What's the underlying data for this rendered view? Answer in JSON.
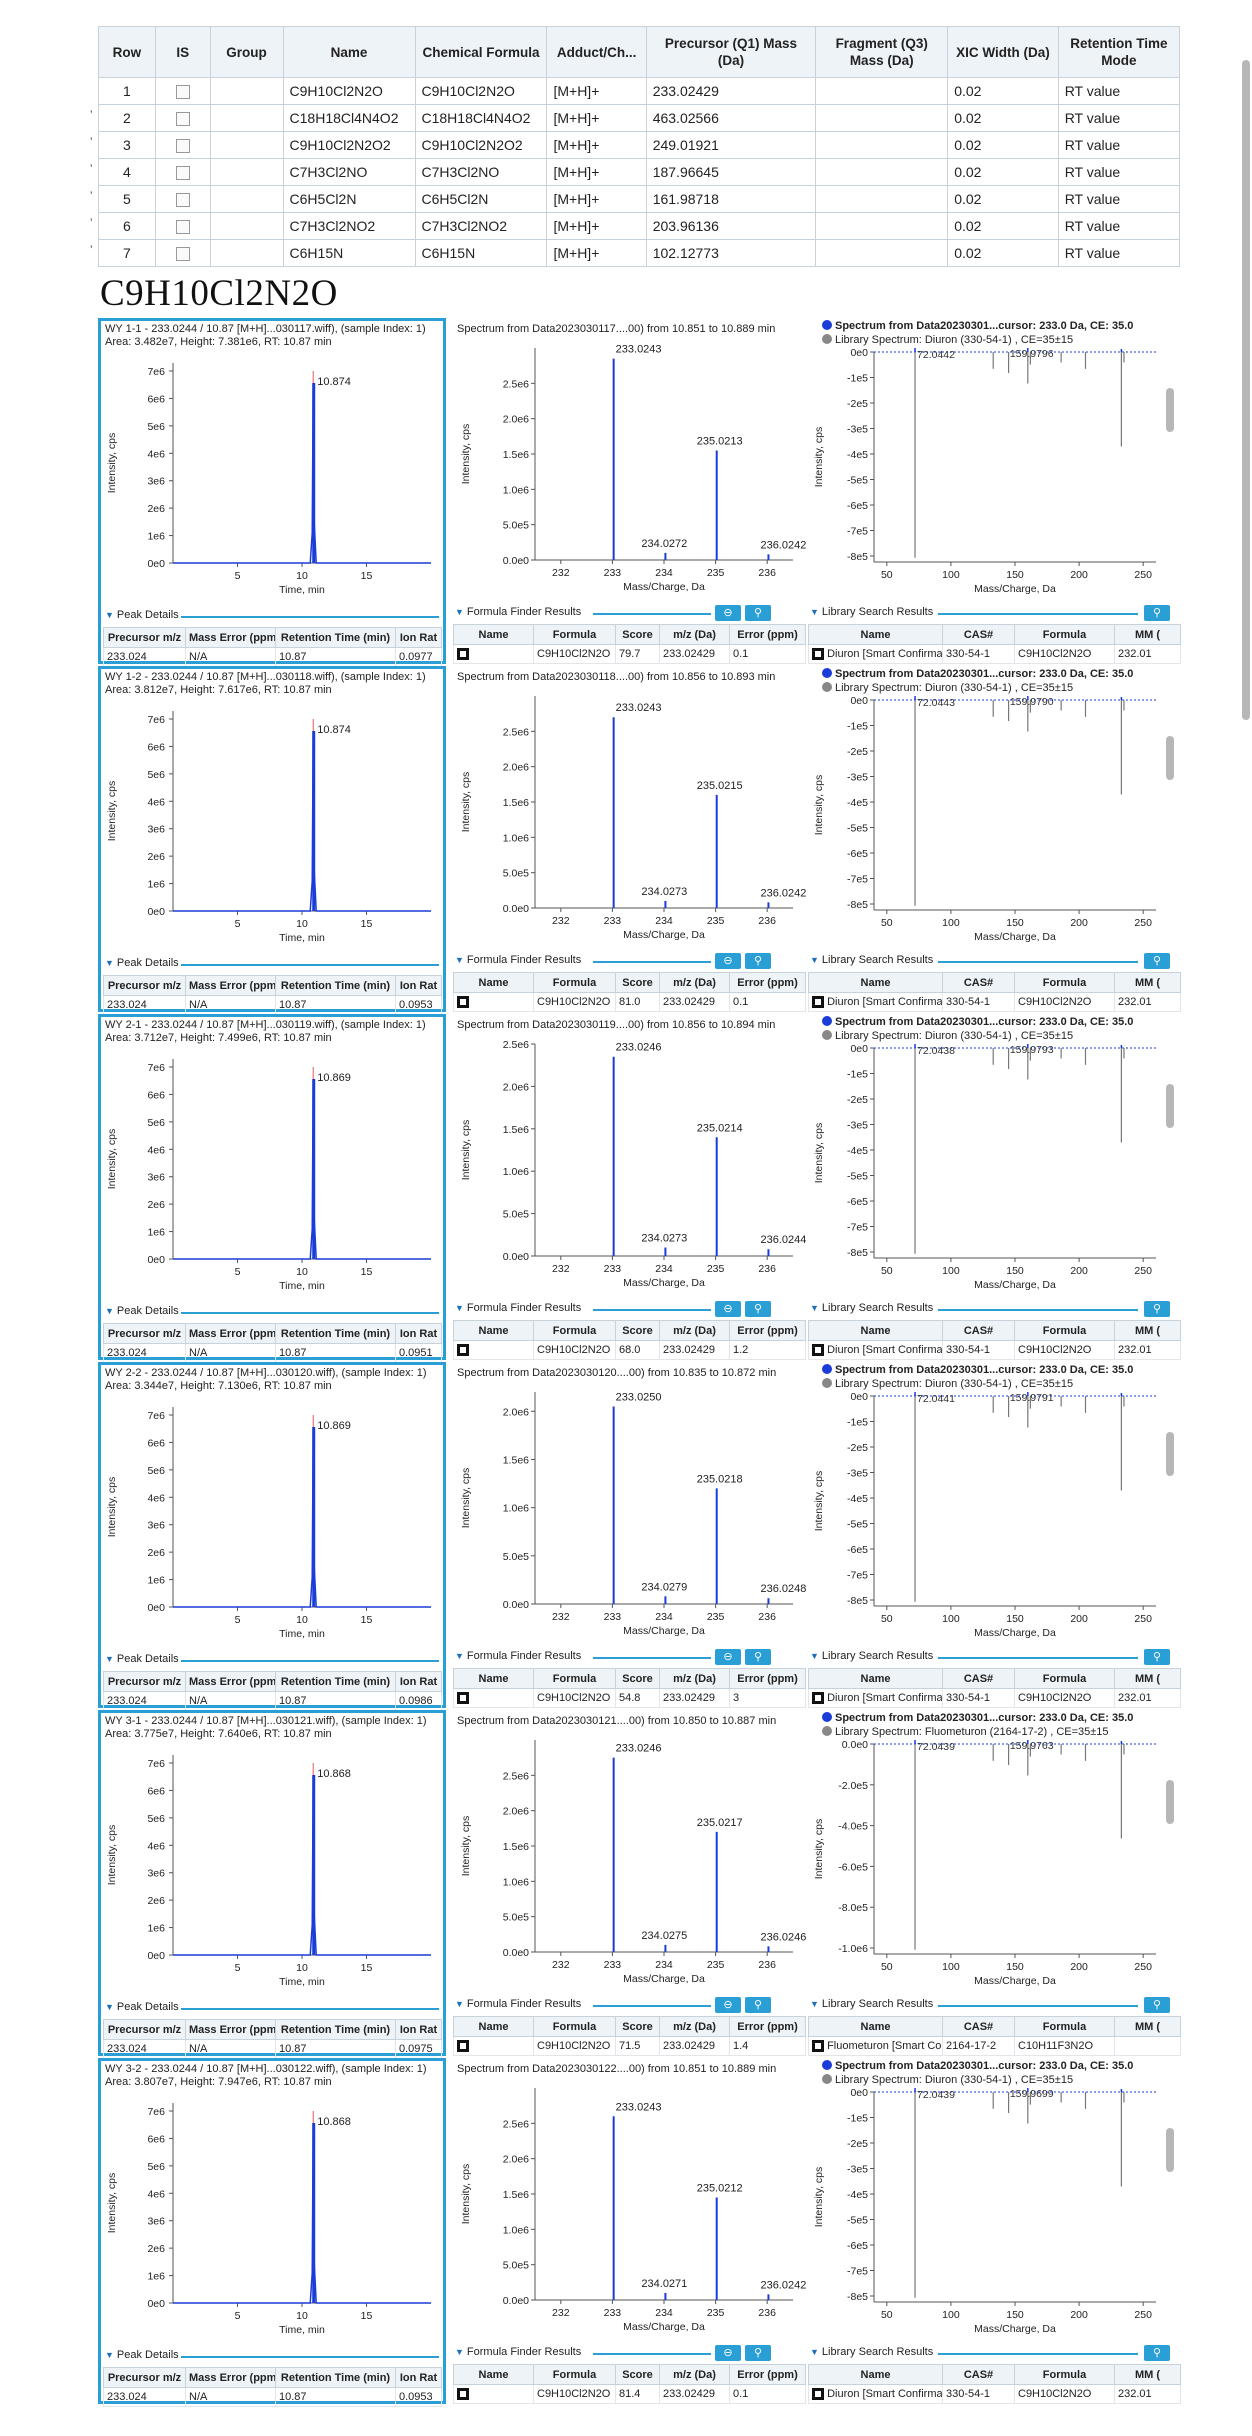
{
  "table": {
    "headers": [
      "Row",
      "IS",
      "Group",
      "Name",
      "Chemical Formula",
      "Adduct/Ch...",
      "Precursor (Q1) Mass (Da)",
      "Fragment (Q3) Mass (Da)",
      "XIC Width (Da)",
      "Retention Time Mode"
    ],
    "rows": [
      {
        "row": "1",
        "name": "C9H10Cl2N2O",
        "formula": "C9H10Cl2N2O",
        "adduct": "[M+H]+",
        "q1": "233.02429",
        "xic": "0.02",
        "rtmode": "RT value"
      },
      {
        "row": "2",
        "name": "C18H18Cl4N4O2",
        "formula": "C18H18Cl4N4O2",
        "adduct": "[M+H]+",
        "q1": "463.02566",
        "xic": "0.02",
        "rtmode": "RT value"
      },
      {
        "row": "3",
        "name": "C9H10Cl2N2O2",
        "formula": "C9H10Cl2N2O2",
        "adduct": "[M+H]+",
        "q1": "249.01921",
        "xic": "0.02",
        "rtmode": "RT value"
      },
      {
        "row": "4",
        "name": "C7H3Cl2NO",
        "formula": "C7H3Cl2NO",
        "adduct": "[M+H]+",
        "q1": "187.96645",
        "xic": "0.02",
        "rtmode": "RT value"
      },
      {
        "row": "5",
        "name": "C6H5Cl2N",
        "formula": "C6H5Cl2N",
        "adduct": "[M+H]+",
        "q1": "161.98718",
        "xic": "0.02",
        "rtmode": "RT value"
      },
      {
        "row": "6",
        "name": "C7H3Cl2NO2",
        "formula": "C7H3Cl2NO2",
        "adduct": "[M+H]+",
        "q1": "203.96136",
        "xic": "0.02",
        "rtmode": "RT value"
      },
      {
        "row": "7",
        "name": "C6H15N",
        "formula": "C6H15N",
        "adduct": "[M+H]+",
        "q1": "102.12773",
        "xic": "0.02",
        "rtmode": "RT value"
      }
    ]
  },
  "heading": "C9H10Cl2N2O",
  "labels": {
    "peak_details": "Peak Details",
    "formula_finder": "Formula Finder Results",
    "library_search": "Library Search Results",
    "time_axis": "Time, min",
    "intensity_axis": "Intensity, cps",
    "mz_axis": "Mass/Charge, Da",
    "peak_headers": [
      "Precursor m/z",
      "Mass Error (ppm)",
      "Retention Time (min)",
      "Ion Rat"
    ],
    "formula_headers": [
      "Name",
      "Formula",
      "Score",
      "m/z (Da)",
      "Error (ppm)"
    ],
    "library_headers": [
      "Name",
      "CAS#",
      "Formula",
      "MM ("
    ],
    "library_headers_formula": "Formula",
    "spectrum_from_prefix": "Spectrum from Data20230301...cursor: 233.0 Da, CE: 35.0"
  },
  "blocks": [
    {
      "xic_title": "WY 1-1 - 233.0244 / 10.87  [M+H]...030117.wiff), (sample Index: 1)",
      "xic_area": "Area: 3.482e7, Height: 7.381e6, RT: 10.87 min",
      "xic_peak_label": "10.874",
      "spec_title": "Spectrum from Data2023030117....00) from 10.851 to 10.889 min",
      "spec_labels": [
        "233.0243",
        "235.0213",
        "234.0272",
        "236.0242"
      ],
      "spec_values": [
        2.85,
        1.55,
        0.1,
        0.08
      ],
      "spec_yticks": [
        "0.0e0",
        "5.0e5",
        "1.0e6",
        "1.5e6",
        "2.0e6",
        "2.5e6"
      ],
      "spec_ymax": 3.0,
      "lib_spectrum_label": "Spectrum from Data20230301...cursor: 233.0 Da, CE: 35.0",
      "lib_library_label": "Library Spectrum: Diuron (330-54-1) , CE=35±15",
      "lib_ann": [
        "72.0442",
        "159.9796"
      ],
      "lib_yticks": [
        "0e0",
        "-1e5",
        "-2e5",
        "-3e5",
        "-4e5",
        "-5e5",
        "-6e5",
        "-7e5",
        "-8e5"
      ],
      "peak_row": [
        "233.024",
        "N/A",
        "10.87",
        "0.0977"
      ],
      "formula_row": [
        "C9H10Cl2N2O",
        "79.7",
        "233.02429",
        "0.1"
      ],
      "library_row": [
        "Diuron [Smart Confirmation]",
        "330-54-1",
        "C9H10Cl2N2O",
        "232.01"
      ]
    },
    {
      "xic_title": "WY 1-2 - 233.0244 / 10.87  [M+H]...030118.wiff), (sample Index: 1)",
      "xic_area": "Area: 3.812e7, Height: 7.617e6, RT: 10.87 min",
      "xic_peak_label": "10.874",
      "spec_title": "Spectrum from Data2023030118....00) from 10.856 to 10.893 min",
      "spec_labels": [
        "233.0243",
        "235.0215",
        "234.0273",
        "236.0242"
      ],
      "spec_values": [
        2.7,
        1.6,
        0.1,
        0.08
      ],
      "spec_yticks": [
        "0.0e0",
        "5.0e5",
        "1.0e6",
        "1.5e6",
        "2.0e6",
        "2.5e6"
      ],
      "spec_ymax": 3.0,
      "lib_spectrum_label": "Spectrum from Data20230301...cursor: 233.0 Da, CE: 35.0",
      "lib_library_label": "Library Spectrum: Diuron (330-54-1) , CE=35±15",
      "lib_ann": [
        "72.0443",
        "159.9790"
      ],
      "lib_yticks": [
        "0e0",
        "-1e5",
        "-2e5",
        "-3e5",
        "-4e5",
        "-5e5",
        "-6e5",
        "-7e5",
        "-8e5"
      ],
      "peak_row": [
        "233.024",
        "N/A",
        "10.87",
        "0.0953"
      ],
      "formula_row": [
        "C9H10Cl2N2O",
        "81.0",
        "233.02429",
        "0.1"
      ],
      "library_row": [
        "Diuron [Smart Confirmation]",
        "330-54-1",
        "C9H10Cl2N2O",
        "232.01"
      ]
    },
    {
      "xic_title": "WY 2-1 - 233.0244 / 10.87  [M+H]...030119.wiff), (sample Index: 1)",
      "xic_area": "Area: 3.712e7, Height: 7.499e6, RT: 10.87 min",
      "xic_peak_label": "10.869",
      "spec_title": "Spectrum from Data2023030119....00) from 10.856 to 10.894 min",
      "spec_labels": [
        "233.0246",
        "235.0214",
        "234.0273",
        "236.0244"
      ],
      "spec_values": [
        2.35,
        1.4,
        0.1,
        0.08
      ],
      "spec_yticks": [
        "0.0e0",
        "5.0e5",
        "1.0e6",
        "1.5e6",
        "2.0e6",
        "2.5e6"
      ],
      "spec_ymax": 2.5,
      "lib_spectrum_label": "Spectrum from Data20230301...cursor: 233.0 Da, CE: 35.0",
      "lib_library_label": "Library Spectrum: Diuron (330-54-1) , CE=35±15",
      "lib_ann": [
        "72.0438",
        "159.9793"
      ],
      "lib_yticks": [
        "0e0",
        "-1e5",
        "-2e5",
        "-3e5",
        "-4e5",
        "-5e5",
        "-6e5",
        "-7e5",
        "-8e5"
      ],
      "peak_row": [
        "233.024",
        "N/A",
        "10.87",
        "0.0951"
      ],
      "formula_row": [
        "C9H10Cl2N2O",
        "68.0",
        "233.02429",
        "1.2"
      ],
      "library_row": [
        "Diuron [Smart Confirmation]",
        "330-54-1",
        "C9H10Cl2N2O",
        "232.01"
      ]
    },
    {
      "xic_title": "WY 2-2 - 233.0244 / 10.87  [M+H]...030120.wiff), (sample Index: 1)",
      "xic_area": "Area: 3.344e7, Height: 7.130e6, RT: 10.87 min",
      "xic_peak_label": "10.869",
      "spec_title": "Spectrum from Data2023030120....00) from 10.835 to 10.872 min",
      "spec_labels": [
        "233.0250",
        "235.0218",
        "234.0279",
        "236.0248"
      ],
      "spec_values": [
        2.05,
        1.2,
        0.08,
        0.06
      ],
      "spec_yticks": [
        "0.0e0",
        "5.0e5",
        "1.0e6",
        "1.5e6",
        "2.0e6"
      ],
      "spec_ymax": 2.2,
      "lib_spectrum_label": "Spectrum from Data20230301...cursor: 233.0 Da, CE: 35.0",
      "lib_library_label": "Library Spectrum: Diuron (330-54-1) , CE=35±15",
      "lib_ann": [
        "72.0441",
        "159.9791"
      ],
      "lib_yticks": [
        "0e0",
        "-1e5",
        "-2e5",
        "-3e5",
        "-4e5",
        "-5e5",
        "-6e5",
        "-7e5",
        "-8e5"
      ],
      "peak_row": [
        "233.024",
        "N/A",
        "10.87",
        "0.0986"
      ],
      "formula_row": [
        "C9H10Cl2N2O",
        "54.8",
        "233.02429",
        "3"
      ],
      "library_row": [
        "Diuron [Smart Confirmation]",
        "330-54-1",
        "C9H10Cl2N2O",
        "232.01"
      ]
    },
    {
      "xic_title": "WY 3-1 - 233.0244 / 10.87  [M+H]...030121.wiff), (sample Index: 1)",
      "xic_area": "Area: 3.775e7, Height: 7.640e6, RT: 10.87 min",
      "xic_peak_label": "10.868",
      "spec_title": "Spectrum from Data2023030121....00) from 10.850 to 10.887 min",
      "spec_labels": [
        "233.0246",
        "235.0217",
        "234.0275",
        "236.0246"
      ],
      "spec_values": [
        2.75,
        1.7,
        0.1,
        0.08
      ],
      "spec_yticks": [
        "0.0e0",
        "5.0e5",
        "1.0e6",
        "1.5e6",
        "2.0e6",
        "2.5e6"
      ],
      "spec_ymax": 3.0,
      "lib_spectrum_label": "Spectrum from Data20230301...cursor: 233.0 Da, CE: 35.0",
      "lib_library_label": "Library Spectrum: Fluometuron (2164-17-2) , CE=35±15",
      "lib_ann": [
        "72.0439",
        "159.9763"
      ],
      "lib_yticks": [
        "0.0e0",
        "-2.0e5",
        "-4.0e5",
        "-6.0e5",
        "-8.0e5",
        "-1.0e6"
      ],
      "peak_row": [
        "233.024",
        "N/A",
        "10.87",
        "0.0975"
      ],
      "formula_row": [
        "C9H10Cl2N2O",
        "71.5",
        "233.02429",
        "1.4"
      ],
      "library_row": [
        "Fluometuron [Smart Confirmation]",
        "2164-17-2",
        "C10H11F3N2O",
        ""
      ]
    },
    {
      "xic_title": "WY 3-2 - 233.0244 / 10.87  [M+H]...030122.wiff), (sample Index: 1)",
      "xic_area": "Area: 3.807e7, Height: 7.947e6, RT: 10.87 min",
      "xic_peak_label": "10.868",
      "spec_title": "Spectrum from Data2023030122....00) from 10.851 to 10.889 min",
      "spec_labels": [
        "233.0243",
        "235.0212",
        "234.0271",
        "236.0242"
      ],
      "spec_values": [
        2.6,
        1.45,
        0.1,
        0.08
      ],
      "spec_yticks": [
        "0.0e0",
        "5.0e5",
        "1.0e6",
        "1.5e6",
        "2.0e6",
        "2.5e6"
      ],
      "spec_ymax": 3.0,
      "lib_spectrum_label": "Spectrum from Data20230301...cursor: 233.0 Da, CE: 35.0",
      "lib_library_label": "Library Spectrum: Diuron (330-54-1) , CE=35±15",
      "lib_ann": [
        "72.0439",
        "159.9699"
      ],
      "lib_yticks": [
        "0e0",
        "-1e5",
        "-2e5",
        "-3e5",
        "-4e5",
        "-5e5",
        "-6e5",
        "-7e5",
        "-8e5"
      ],
      "peak_row": [
        "233.024",
        "N/A",
        "10.87",
        "0.0953"
      ],
      "formula_row": [
        "C9H10Cl2N2O",
        "81.4",
        "233.02429",
        "0.1"
      ],
      "library_row": [
        "Diuron [Smart Confirmation]",
        "330-54-1",
        "C9H10Cl2N2O",
        "232.01"
      ]
    }
  ],
  "axes": {
    "xic_yticks": [
      "0e0",
      "1e6",
      "2e6",
      "3e6",
      "4e6",
      "5e6",
      "6e6",
      "7e6"
    ],
    "xic_xticks": [
      "5",
      "10",
      "15"
    ],
    "spec_xticks": [
      "232",
      "233",
      "234",
      "235",
      "236"
    ],
    "lib_xticks": [
      "50",
      "100",
      "150",
      "200",
      "250"
    ]
  },
  "chart_data": {
    "type": "line",
    "description_series": "XIC chromatograms and MS/MS spectra per sample",
    "xic_x_range": [
      0,
      20
    ],
    "xic_y_range": [
      0,
      7500000
    ],
    "spec_x_range": [
      231.5,
      236.5
    ],
    "lib_x_range": [
      40,
      260
    ]
  },
  "colors": {
    "accent": "#2a9fd6",
    "trace": "#1a3cd8",
    "peak_marker": "#e05a5a"
  }
}
